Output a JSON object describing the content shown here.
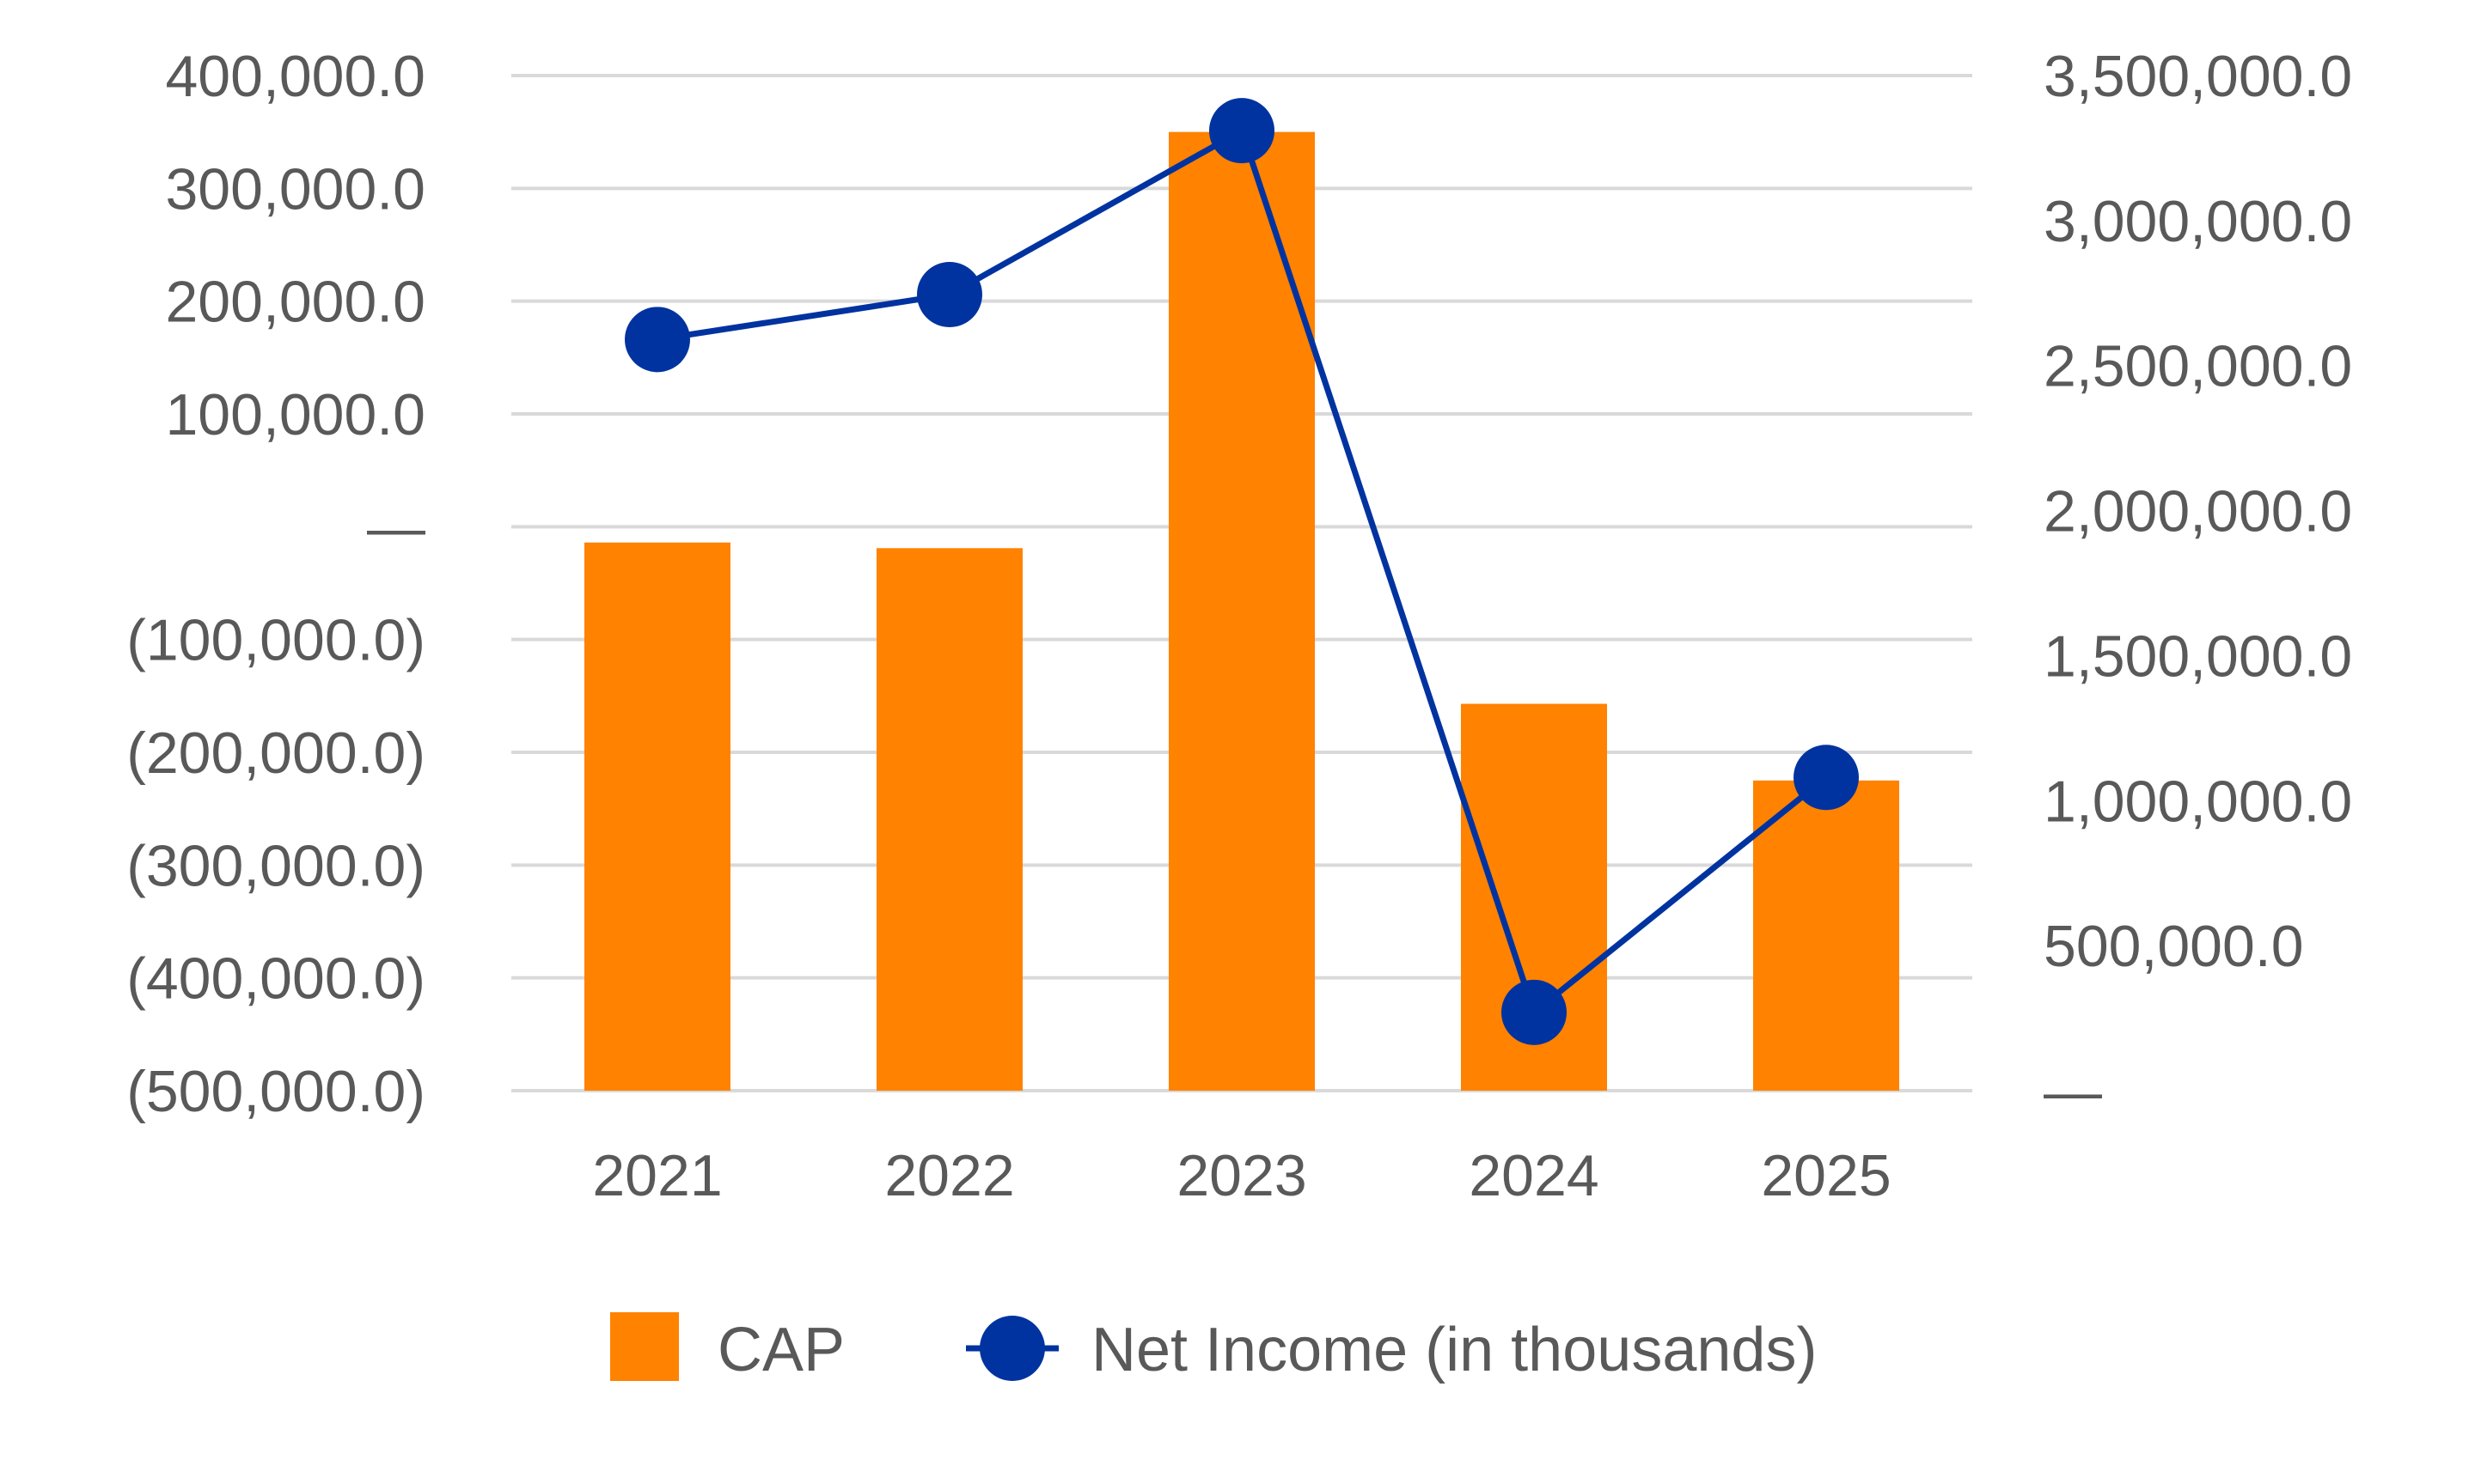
{
  "chart_data": {
    "type": "bar",
    "categories": [
      "2021",
      "2022",
      "2023",
      "2024",
      "2025"
    ],
    "series": [
      {
        "name": "CAP",
        "kind": "bar",
        "axis": "left",
        "color": "#FF8200",
        "values": [
          -14000,
          -19000,
          350000,
          -157000,
          -225000
        ]
      },
      {
        "name": "Net Income (in thousands)",
        "kind": "line",
        "axis": "right",
        "color": "#0033A0",
        "values": [
          2590000,
          2745000,
          3310000,
          270000,
          1080000
        ]
      }
    ],
    "left_axis": {
      "ylim": [
        -500000,
        400000
      ],
      "ticks": [
        400000,
        300000,
        200000,
        100000,
        0,
        -100000,
        -200000,
        -300000,
        -400000,
        -500000
      ],
      "tick_labels": [
        "400,000.0",
        "300,000.0",
        "200,000.0",
        "100,000.0",
        "—",
        "(100,000.0)",
        "(200,000.0)",
        "(300,000.0)",
        "(400,000.0)",
        "(500,000.0)"
      ]
    },
    "right_axis": {
      "ylim": [
        0,
        3500000
      ],
      "ticks": [
        3500000,
        3000000,
        2500000,
        2000000,
        1500000,
        1000000,
        500000,
        0
      ],
      "tick_labels": [
        "3,500,000.0",
        "3,000,000.0",
        "2,500,000.0",
        "2,000,000.0",
        "1,500,000.0",
        "1,000,000.0",
        "500,000.0",
        "—"
      ]
    },
    "grid": true,
    "legend": "bottom",
    "title": "",
    "xlabel": "",
    "ylabel": ""
  }
}
